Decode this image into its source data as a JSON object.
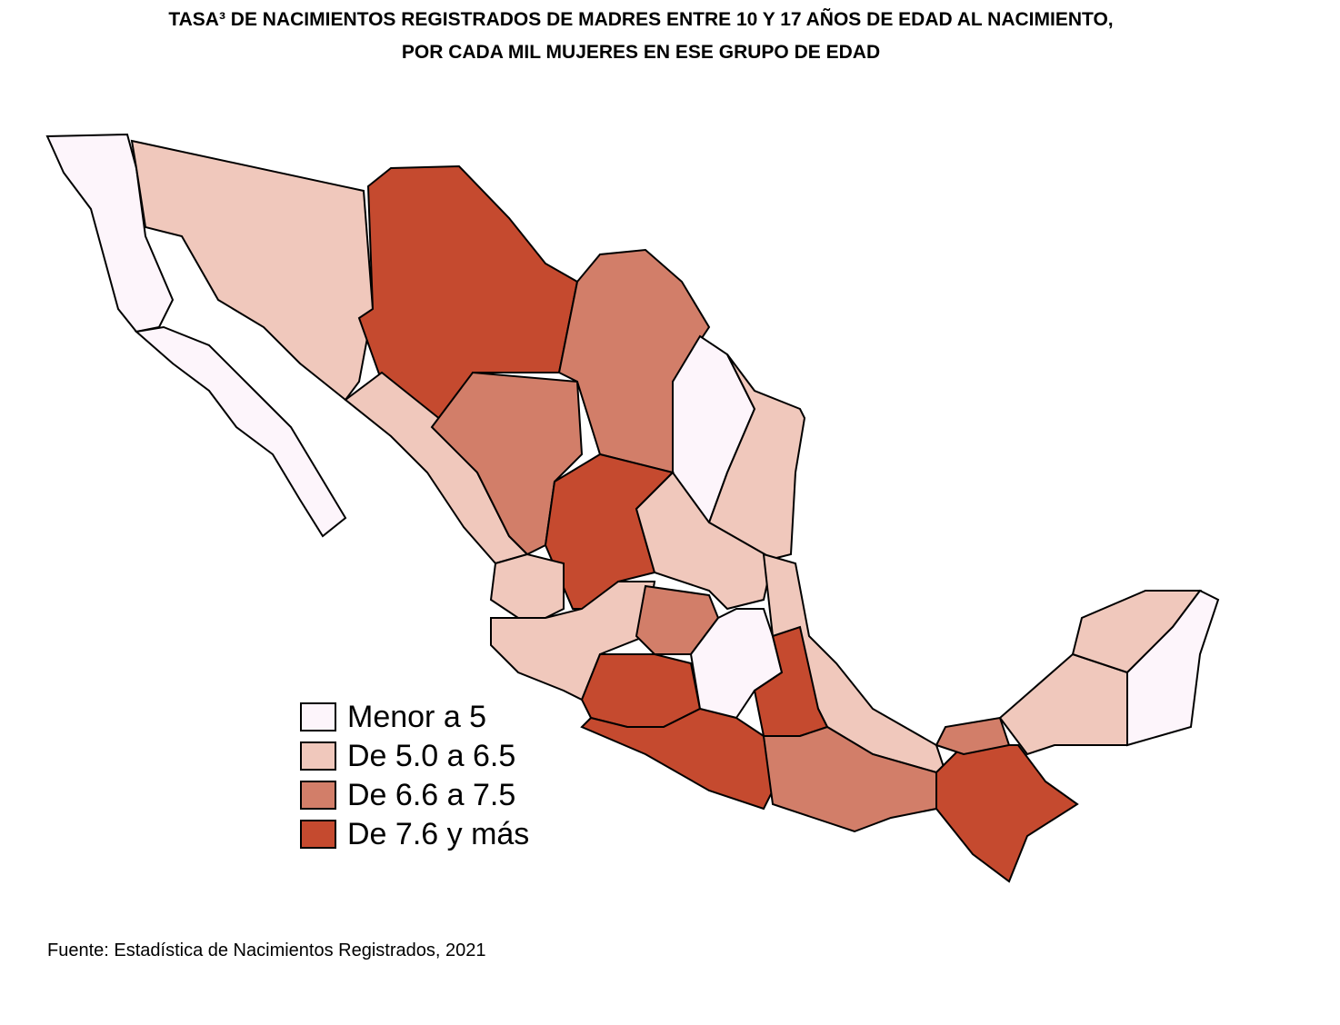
{
  "header": {
    "title_lines": [
      "TASA³ DE NACIMIENTOS REGISTRADOS DE MADRES ENTRE 10 Y 17 AÑOS DE EDAD AL NACIMIENTO,",
      "POR CADA MIL MUJERES EN ESE GRUPO DE EDAD"
    ]
  },
  "legend": [
    {
      "label": "Menor a 5",
      "color": "#fdf5fb"
    },
    {
      "label": "De 5.0 a 6.5",
      "color": "#f0c8bc"
    },
    {
      "label": "De 6.6 a 7.5",
      "color": "#d27e69"
    },
    {
      "label": "De 7.6 y más",
      "color": "#c54a2f"
    }
  ],
  "source": "Fuente: Estadística de Nacimientos Registrados, 2021"
}
